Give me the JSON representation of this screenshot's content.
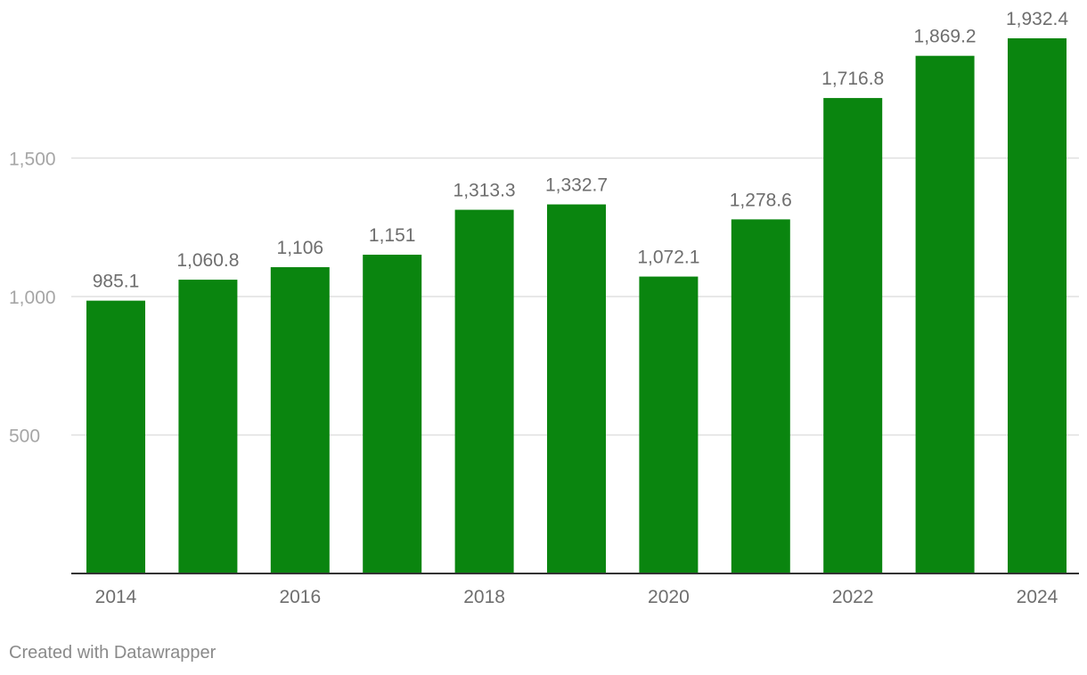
{
  "chart_data": {
    "type": "bar",
    "categories": [
      "2014",
      "2015",
      "2016",
      "2017",
      "2018",
      "2019",
      "2020",
      "2021",
      "2022",
      "2023",
      "2024"
    ],
    "values": [
      985.1,
      1060.8,
      1106,
      1151,
      1313.3,
      1332.7,
      1072.1,
      1278.6,
      1716.8,
      1869.2,
      1932.4
    ],
    "value_labels": [
      "985.1",
      "1,060.8",
      "1,106",
      "1,151",
      "1,313.3",
      "1,332.7",
      "1,072.1",
      "1,278.6",
      "1,716.8",
      "1,869.2",
      "1,932.4"
    ],
    "x_tick_labels": [
      "2014",
      "",
      "2016",
      "",
      "2018",
      "",
      "2020",
      "",
      "2022",
      "",
      "2024"
    ],
    "y_ticks": [
      500,
      1000,
      1500
    ],
    "y_tick_labels": [
      "500",
      "1,000",
      "1,500"
    ],
    "ylim": [
      0,
      2000
    ],
    "title": "",
    "xlabel": "",
    "ylabel": "",
    "grid": true,
    "legend": "none",
    "colors": {
      "bar": "#0a850f",
      "grid": "#e0e0e0",
      "axis": "#333333",
      "tick_text": "#a6a6a6",
      "label_text": "#6e6e6e",
      "x_tick_text": "#6e6e6e"
    }
  },
  "footer": {
    "credit": "Created with Datawrapper"
  }
}
